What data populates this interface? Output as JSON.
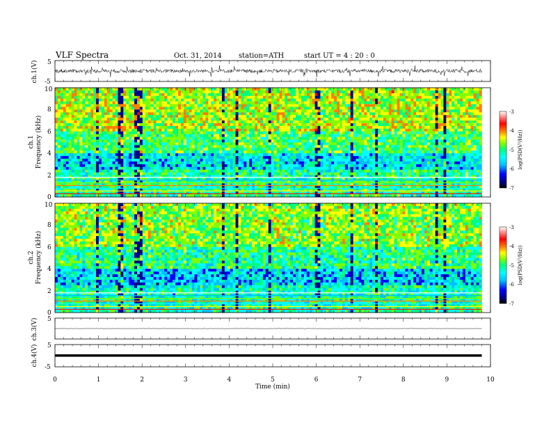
{
  "header": {
    "title": "VLF  Spectra",
    "date": "Oct. 31, 2014",
    "station": "station=ATH",
    "start": "start  UT  =   4  : 20 : 0"
  },
  "colors": {
    "spectrum": [
      "#000000",
      "#00008b",
      "#0000ff",
      "#00bfff",
      "#00ffff",
      "#00ff7f",
      "#7fff00",
      "#ffff00",
      "#ff7f00",
      "#ff0000",
      "#ffffff"
    ]
  },
  "chart_data": [
    {
      "type": "line",
      "ylabel": "ch.1(V)",
      "ylim": [
        -5,
        5
      ],
      "yticks": [
        "5",
        "-5"
      ],
      "trace": "noisy waveform around 0 V, excursions about ±2 V"
    },
    {
      "type": "heatmap",
      "ylabel": "Frequency (kHz)",
      "channel_label": "ch.1",
      "ylim": [
        0,
        10
      ],
      "yticks": [
        "0",
        "2",
        "4",
        "6",
        "8",
        "10"
      ],
      "colorbar": {
        "label": "log(PSD(V²/Hz))",
        "range": [
          -7,
          -3
        ],
        "ticks": [
          "-3",
          "-4",
          "-5",
          "-6",
          "-7"
        ]
      },
      "features": "broadband sferics throughout, strongest above 6 kHz, horizontal narrowband lines below 2 kHz"
    },
    {
      "type": "heatmap",
      "ylabel": "Frequency (kHz)",
      "channel_label": "ch.2",
      "ylim": [
        0,
        10
      ],
      "yticks": [
        "0",
        "2",
        "4",
        "6",
        "8",
        "10"
      ],
      "colorbar": {
        "label": "log(PSD(V²/Hz))",
        "range": [
          -7,
          -3
        ],
        "ticks": [
          "-3",
          "-4",
          "-5",
          "-6",
          "-7"
        ]
      },
      "features": "broadband sferics throughout, horizontal narrowband lines below 2 kHz"
    },
    {
      "type": "line",
      "ylabel": "ch.3(V)",
      "ylim": [
        -5,
        5
      ],
      "yticks": [
        "5"
      ],
      "trace": "flat near 0 V"
    },
    {
      "type": "line",
      "ylabel": "ch.4(V)",
      "ylim": [
        -5,
        5
      ],
      "yticks": [
        "5",
        "-5"
      ],
      "trace": "thick flat band near 0 V"
    }
  ],
  "xaxis": {
    "label": "Time  (min)",
    "range": [
      0,
      10
    ],
    "ticks": [
      "0",
      "1",
      "2",
      "3",
      "4",
      "5",
      "6",
      "7",
      "8",
      "9",
      "10"
    ],
    "data_end": 9.8
  }
}
